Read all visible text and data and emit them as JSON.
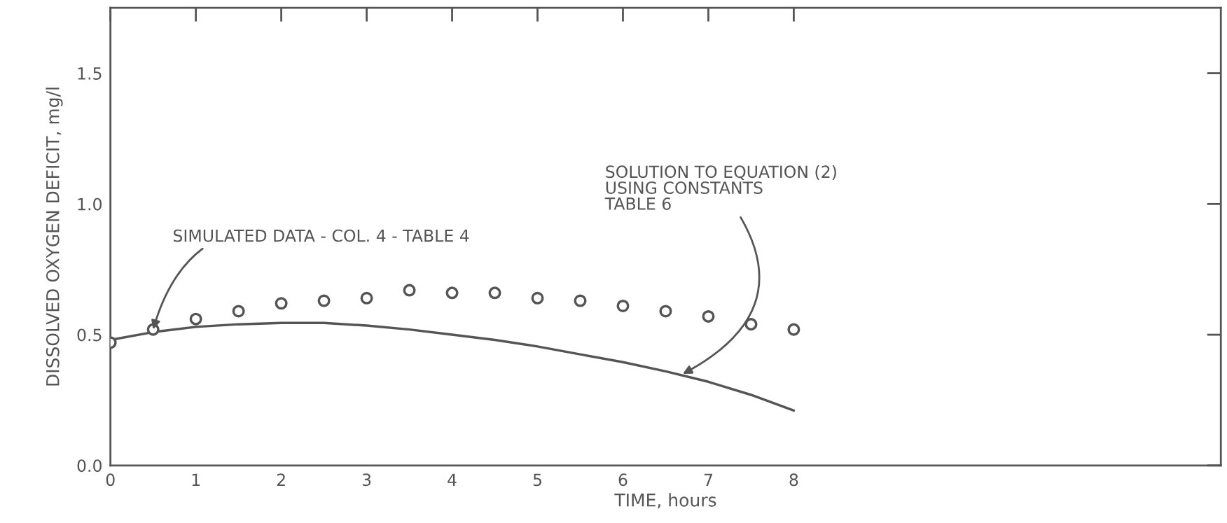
{
  "chart_data": {
    "xlabel": "TIME, hours",
    "ylabel": "DISSOLVED OXYGEN DEFICIT, mg/l",
    "xlim": [
      0,
      13
    ],
    "ylim": [
      0,
      1.75
    ],
    "xticks": [
      0,
      1,
      2,
      3,
      4,
      5,
      6,
      7,
      8
    ],
    "yticks": [
      {
        "value": 0,
        "label": "0.0"
      },
      {
        "value": 0.5,
        "label": "0.5"
      },
      {
        "value": 1.0,
        "label": "1.0"
      },
      {
        "value": 1.5,
        "label": "1.5"
      }
    ],
    "grid": false,
    "legend": false,
    "series": [
      {
        "marker": "circle",
        "color": "#555555",
        "x": [
          0,
          0.5,
          1,
          1.5,
          2,
          2.5,
          3,
          3.5,
          4,
          4.5,
          5,
          5.5,
          6,
          6.5,
          7,
          7.5,
          8
        ],
        "values": [
          0.47,
          0.52,
          0.56,
          0.59,
          0.62,
          0.63,
          0.64,
          0.67,
          0.66,
          0.66,
          0.64,
          0.63,
          0.61,
          0.59,
          0.57,
          0.54,
          0.52
        ]
      },
      {
        "type": "line",
        "line_style": "solid",
        "color": "#555555",
        "x": [
          0,
          0.5,
          1,
          1.5,
          2,
          2.5,
          3,
          3.5,
          4,
          4.5,
          5,
          5.5,
          6,
          6.5,
          7,
          7.5,
          8
        ],
        "values": [
          0.48,
          0.51,
          0.53,
          0.54,
          0.545,
          0.545,
          0.535,
          0.52,
          0.5,
          0.48,
          0.455,
          0.425,
          0.395,
          0.36,
          0.32,
          0.27,
          0.21
        ]
      }
    ],
    "type": "scatter",
    "annotations": [
      {
        "text": "SIMULATED DATA - COL. 4 - TABLE 4",
        "x": 0.5,
        "y": 0.52
      },
      {
        "text": "SOLUTION TO EQUATION (2)\nUSING CONSTANTS\nTABLE 6",
        "x": 6.7,
        "y": 0.35
      }
    ]
  }
}
